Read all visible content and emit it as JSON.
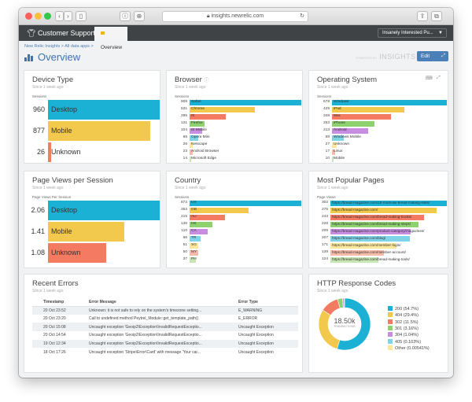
{
  "browser": {
    "url": "insights.newrelic.com"
  },
  "nav": {
    "brand": "Customer Support",
    "tab": "Overview",
    "account": "Insanely Interested Pu..."
  },
  "page": {
    "breadcrumb": "New Relic Insights  >  All data apps  >",
    "title": "Overview",
    "powered": "POWERED BY",
    "logo": "INSIGHTS",
    "edit": "Edit"
  },
  "device": {
    "title": "Device Type",
    "since": "Since 1 week ago",
    "label": "Sessions",
    "rows": [
      {
        "value": 960,
        "label": "Desktop",
        "color": "#1ab1d4"
      },
      {
        "value": 877,
        "label": "Mobile",
        "color": "#f2c94c"
      },
      {
        "value": 26,
        "label": "Unknown",
        "color": "#f47b61"
      }
    ]
  },
  "browser_panel": {
    "title": "Browser",
    "since": "Since 1 week ago",
    "label": "Sessions",
    "rows": [
      {
        "value": 908,
        "label": "Safari",
        "color": "#1ab1d4"
      },
      {
        "value": 531,
        "label": "Chrome",
        "color": "#f2c94c"
      },
      {
        "value": 295,
        "label": "IE",
        "color": "#f47b61"
      },
      {
        "value": 121,
        "label": "Firefox",
        "color": "#8ed16f"
      },
      {
        "value": 104,
        "label": "IE Mobile",
        "color": "#c78de0"
      },
      {
        "value": 68,
        "label": "Opera Mini",
        "color": "#80d4e8"
      },
      {
        "value": 26,
        "label": "Netscape",
        "color": "#fde79a"
      },
      {
        "value": 23,
        "label": "Android Browser",
        "color": "#f8bba9"
      },
      {
        "value": 14,
        "label": "Microsoft Edge",
        "color": "#c6e6b3"
      }
    ]
  },
  "os": {
    "title": "Operating System",
    "since": "Since 1 week ago",
    "label": "Sessions",
    "rows": [
      {
        "value": 678,
        "label": "Windows",
        "color": "#1ab1d4"
      },
      {
        "value": 425,
        "label": "iPad",
        "color": "#f2c94c"
      },
      {
        "value": 348,
        "label": "Mac",
        "color": "#f47b61"
      },
      {
        "value": 253,
        "label": "iPhone",
        "color": "#8ed16f"
      },
      {
        "value": 213,
        "label": "Android",
        "color": "#c78de0"
      },
      {
        "value": 68,
        "label": "Windows Mobile",
        "color": "#80d4e8"
      },
      {
        "value": 27,
        "label": "Unknown",
        "color": "#fde79a"
      },
      {
        "value": 17,
        "label": "Linux",
        "color": "#f8bba9"
      },
      {
        "value": 10,
        "label": "Mobile",
        "color": "#c6e6b3"
      }
    ]
  },
  "pvs": {
    "title": "Page Views per Session",
    "since": "Since 1 week ago",
    "label": "Page Views Per Session",
    "rows": [
      {
        "value": "2.06",
        "num": 2.06,
        "label": "Desktop",
        "color": "#1ab1d4"
      },
      {
        "value": "1.41",
        "num": 1.41,
        "label": "Mobile",
        "color": "#f2c94c"
      },
      {
        "value": "1.08",
        "num": 1.08,
        "label": "Unknown",
        "color": "#f47b61"
      }
    ]
  },
  "country": {
    "title": "Country",
    "since": "Since 1 week ago",
    "label": "Sessions",
    "rows": [
      {
        "value": 672,
        "label": "US",
        "color": "#1ab1d4"
      },
      {
        "value": 353,
        "label": "GB",
        "color": "#f2c94c"
      },
      {
        "value": 215,
        "label": "AU",
        "color": "#f47b61"
      },
      {
        "value": 136,
        "label": "HK",
        "color": "#8ed16f"
      },
      {
        "value": 110,
        "label": "CA",
        "color": "#c78de0"
      },
      {
        "value": 66,
        "label": "TR",
        "color": "#80d4e8"
      },
      {
        "value": 51,
        "label": "SG",
        "color": "#fde79a"
      },
      {
        "value": 50,
        "label": "MY",
        "color": "#f8bba9"
      },
      {
        "value": 37,
        "label": "PH",
        "color": "#c6e6b3"
      }
    ]
  },
  "pages": {
    "title": "Most Popular Pages",
    "since": "Since 1 week ago",
    "label": "Page Views",
    "rows": [
      {
        "value": 302,
        "label": "https://bread-magazine.com/10-most-aw-bread-making-sites/",
        "color": "#1ab1d4"
      },
      {
        "value": 275,
        "label": "https://bread-magazine.com/",
        "color": "#f2c94c"
      },
      {
        "value": 243,
        "label": "https://bread-magazine.com/bread-making-books/",
        "color": "#f47b61"
      },
      {
        "value": 228,
        "label": "https://bread-magazine.com/bread-making-steps/",
        "color": "#8ed16f"
      },
      {
        "value": 209,
        "label": "https://bread-magazine.com/product-category/magazines/",
        "color": "#c78de0"
      },
      {
        "value": 207,
        "label": "https://bread-magazine.com/blog/",
        "color": "#80d4e8"
      },
      {
        "value": 171,
        "label": "https://bread-magazine.com/member-login/",
        "color": "#fde79a"
      },
      {
        "value": 139,
        "label": "https://bread-magazine.com/member-account/",
        "color": "#f8bba9"
      },
      {
        "value": 124,
        "label": "https://bread-magazine.com/bread-making-tools/",
        "color": "#c6e6b3"
      }
    ]
  },
  "errors": {
    "title": "Recent Errors",
    "since": "Since 1 week ago",
    "columns": [
      "Timestamp",
      "Error Message",
      "Error Type"
    ],
    "rows": [
      [
        "20 Oct 23:52",
        "Unknown: it is not safe to rely on the system's timezone setting...",
        "E_WARNING"
      ],
      [
        "20 Oct 23:20",
        "Call to undefined method Peytrel_Module::get_template_path()",
        "E_ERROR"
      ],
      [
        "20 Oct 15:08",
        "Uncaught exception 'Geoip2\\Exception\\InvalidRequestExceptio...",
        "Uncaught Exception"
      ],
      [
        "20 Oct 14:54",
        "Uncaught exception 'Geoip2\\Exception\\InvalidRequestExceptio...",
        "Uncaught Exception"
      ],
      [
        "19 Oct 12:34",
        "Uncaught exception 'Geoip2\\Exception\\InvalidRequestExceptio...",
        "Uncaught Exception"
      ],
      [
        "18 Oct 17:26",
        "Uncaught exception 'Stripe\\Error\\Card' with message 'Your car...",
        "Uncaught Exception"
      ]
    ]
  },
  "http": {
    "title": "HTTP Response Codes",
    "since": "Since 1 week ago",
    "total": "18.50k",
    "total_label": "TRANSACTIONS",
    "slices": [
      {
        "label": "200 (54.7%)",
        "pct": 54.7,
        "color": "#1ab1d4"
      },
      {
        "label": "404 (29.4%)",
        "pct": 29.4,
        "color": "#f2c94c"
      },
      {
        "label": "302 (11.5%)",
        "pct": 11.5,
        "color": "#f47b61"
      },
      {
        "label": "301 (3.16%)",
        "pct": 3.16,
        "color": "#8ed16f"
      },
      {
        "label": "304 (1.04%)",
        "pct": 1.04,
        "color": "#c78de0"
      },
      {
        "label": "405 (0.103%)",
        "pct": 0.103,
        "color": "#80d4e8"
      },
      {
        "label": "Other (0.00541%)",
        "pct": 0.00541,
        "color": "#fde79a"
      }
    ]
  }
}
